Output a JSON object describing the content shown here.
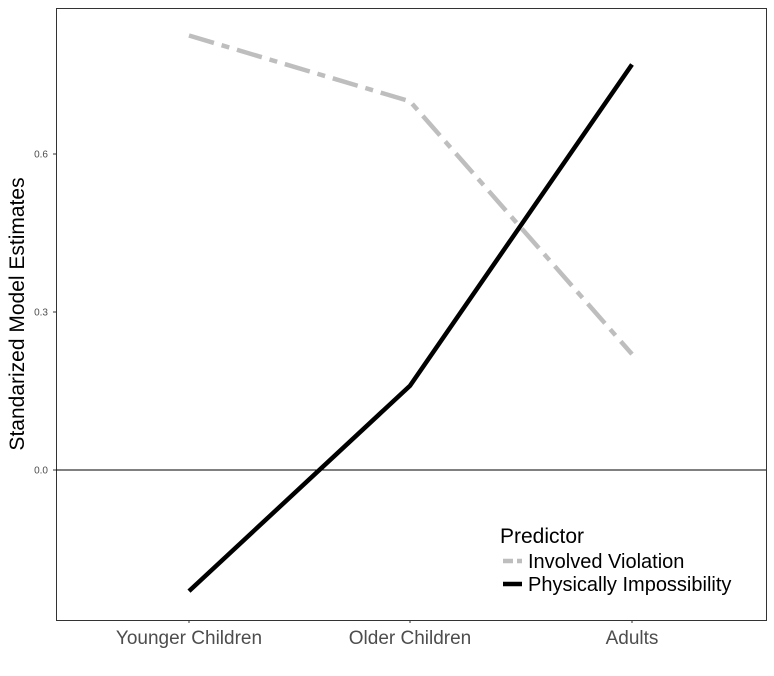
{
  "chart_data": {
    "type": "line",
    "title": "",
    "xlabel": "",
    "ylabel": "Standarized Model Estimates",
    "categories": [
      "Younger Children",
      "Older Children",
      "Adults"
    ],
    "y_ticks": [
      0.0,
      0.3,
      0.6
    ],
    "y_tick_labels": [
      "0.0",
      "0.3",
      "0.6"
    ],
    "ylim": [
      -0.28,
      0.88
    ],
    "reference_line_y": 0.0,
    "grid": false,
    "legend": {
      "title": "Predictor",
      "position": "bottom-right"
    },
    "series": [
      {
        "name": "Involved Violation",
        "values": [
          0.825,
          0.7,
          0.22
        ],
        "color": "#bebebe",
        "dash": "longdash-dot"
      },
      {
        "name": "Physically Impossibility",
        "values": [
          -0.23,
          0.16,
          0.77
        ],
        "color": "#000000",
        "dash": "solid"
      }
    ]
  }
}
